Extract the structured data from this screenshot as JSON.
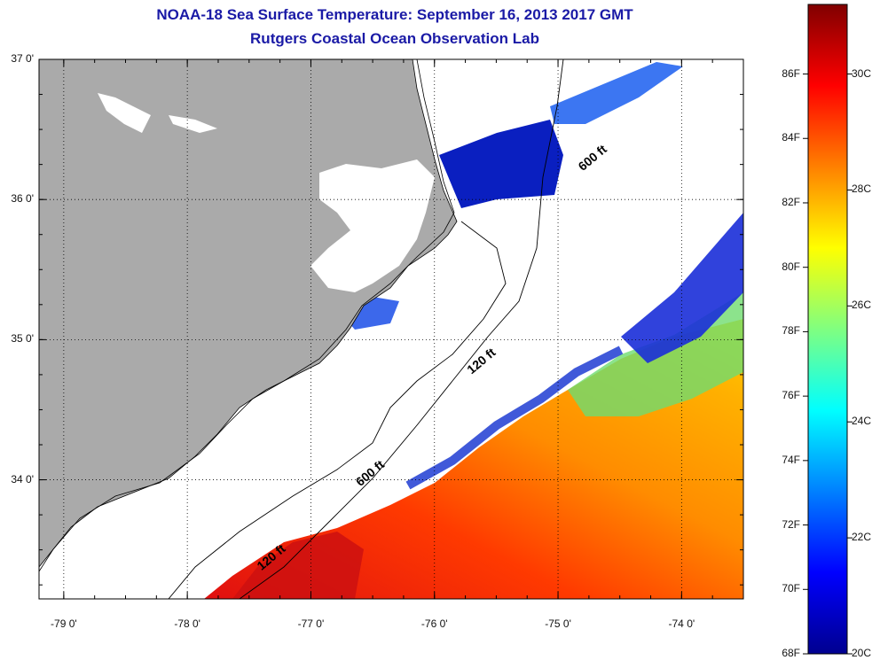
{
  "header": {
    "title": "NOAA-18 Sea Surface Temperature:  September 16, 2013 2017 GMT",
    "subtitle": "Rutgers Coastal Ocean Observation Lab"
  },
  "map": {
    "land_color": "#aaaaaa",
    "water_color": "#ffffff",
    "lat_ticks": [
      "37 0'",
      "36 0'",
      "35 0'",
      "34 0'"
    ],
    "lat_values": [
      37,
      36,
      35,
      34
    ],
    "lon_ticks": [
      "-79 0'",
      "-78 0'",
      "-77 0'",
      "-76 0'",
      "-75 0'",
      "-74 0'"
    ],
    "lon_values": [
      -79,
      -78,
      -77,
      -76,
      -75,
      -74
    ],
    "lat_range": [
      33.15,
      37.0
    ],
    "lon_range": [
      -79.2,
      -73.5
    ],
    "depth_labels": [
      {
        "text": "120 ft",
        "lon": -75.7,
        "lat": 34.75
      },
      {
        "text": "600 ft",
        "lon": -76.6,
        "lat": 33.95
      },
      {
        "text": "120 ft",
        "lon": -77.4,
        "lat": 33.35
      },
      {
        "text": "600 ft",
        "lon": -74.8,
        "lat": 36.2
      }
    ]
  },
  "colorbar": {
    "f_labels": [
      "86F",
      "84F",
      "82F",
      "80F",
      "78F",
      "76F",
      "74F",
      "72F",
      "70F",
      "68F"
    ],
    "f_values": [
      86,
      84,
      82,
      80,
      78,
      76,
      74,
      72,
      70,
      68
    ],
    "c_labels": [
      "30C",
      "28C",
      "26C",
      "24C",
      "22C",
      "20C"
    ],
    "c_values": [
      30,
      28,
      26,
      24,
      22,
      20
    ],
    "range_c": [
      20,
      31.2
    ],
    "colors": [
      "#00008f",
      "#0000ff",
      "#0080ff",
      "#00ffff",
      "#80ff80",
      "#ffff00",
      "#ff8000",
      "#ff0000",
      "#800000"
    ]
  }
}
